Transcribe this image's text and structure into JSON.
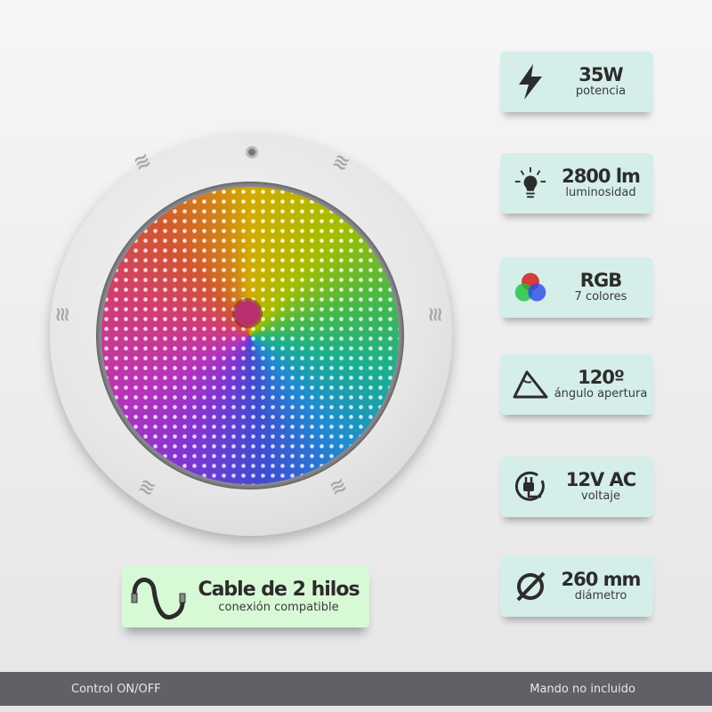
{
  "specs": [
    {
      "icon": "lightning-icon",
      "value": "35W",
      "label": "potencia"
    },
    {
      "icon": "lightbulb-icon",
      "value": "2800 lm",
      "label": "luminosidad"
    },
    {
      "icon": "rgb-circles-icon",
      "value": "RGB",
      "label": "7 colores"
    },
    {
      "icon": "angle-icon",
      "value": "120º",
      "label": "ángulo apertura"
    },
    {
      "icon": "plug-icon",
      "value": "12V AC",
      "label": "voltaje"
    },
    {
      "icon": "diameter-icon",
      "value": "260 mm",
      "label": "diámetro"
    }
  ],
  "cable": {
    "icon": "cable-icon",
    "value": "Cable de 2 hilos",
    "label": "conexión compatible"
  },
  "footer": {
    "left": "Control ON/OFF",
    "right": "Mando no incluido"
  },
  "colors": {
    "spec_card": "#d5eee9",
    "cable_card": "#d8f9d6",
    "footer": "#5f6166"
  }
}
